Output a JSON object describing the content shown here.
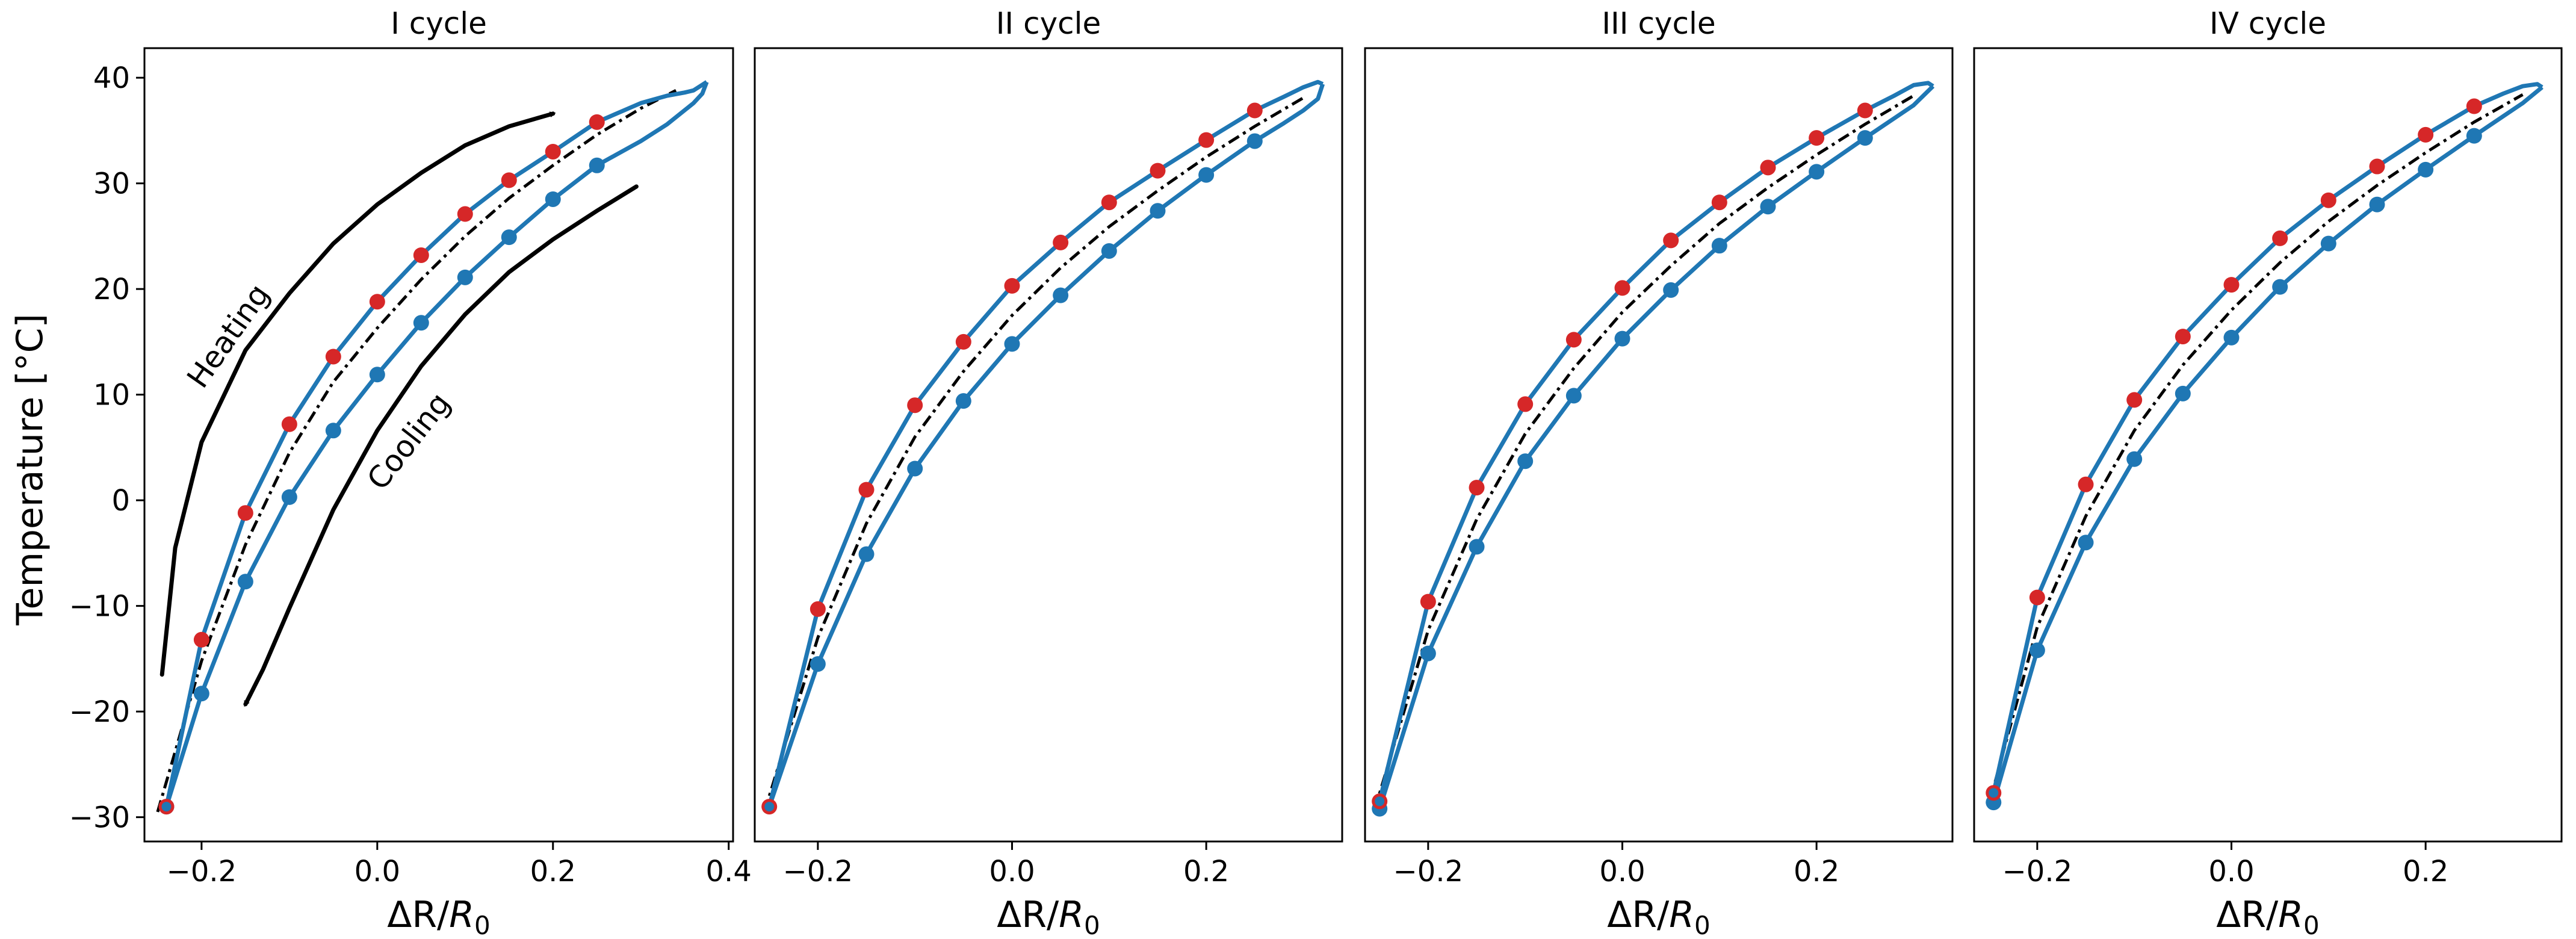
{
  "chart_data": [
    {
      "type": "line",
      "title": "I cycle",
      "xlabel_main": "ΔR/",
      "xlabel_italic": "R",
      "xlabel_sub": "0",
      "ylabel": "Temperature [°C]",
      "xlim": [
        -0.265,
        0.405
      ],
      "ylim": [
        -32.3,
        42.8
      ],
      "x_ticks": [
        -0.2,
        0.0,
        0.2,
        0.4
      ],
      "x_tick_labels": [
        "−0.2",
        "0.0",
        "0.2",
        "0.4"
      ],
      "y_ticks": [
        -30,
        -20,
        -10,
        0,
        10,
        20,
        30,
        40
      ],
      "y_tick_labels": [
        "−30",
        "−20",
        "−10",
        "0",
        "10",
        "20",
        "30",
        "40"
      ],
      "heating": {
        "x": [
          -0.24,
          -0.2,
          -0.15,
          -0.1,
          -0.05,
          0.0,
          0.05,
          0.1,
          0.15,
          0.2,
          0.25,
          0.3,
          0.33,
          0.35,
          0.36,
          0.375
        ],
        "y": [
          -29,
          -13.2,
          -1.2,
          7.2,
          13.6,
          18.8,
          23.2,
          27.1,
          30.3,
          33.0,
          35.8,
          37.6,
          38.3,
          38.6,
          38.8,
          39.6
        ]
      },
      "cooling": {
        "x": [
          0.375,
          0.37,
          0.36,
          0.33,
          0.3,
          0.25,
          0.2,
          0.15,
          0.1,
          0.05,
          0.0,
          -0.05,
          -0.1,
          -0.15,
          -0.2,
          -0.24
        ],
        "y": [
          39.6,
          38.5,
          37.6,
          35.6,
          34.0,
          31.7,
          28.5,
          24.9,
          21.1,
          16.8,
          11.9,
          6.6,
          0.3,
          -7.7,
          -18.3,
          -29
        ]
      },
      "fit": {
        "x": [
          -0.25,
          -0.2,
          -0.15,
          -0.1,
          -0.05,
          0.0,
          0.05,
          0.1,
          0.15,
          0.2,
          0.25,
          0.3,
          0.34
        ],
        "y": [
          -29.5,
          -15.2,
          -4.2,
          4.5,
          11.2,
          16.3,
          20.9,
          25.0,
          28.6,
          31.7,
          34.6,
          37.1,
          38.8
        ]
      },
      "heating_markers": {
        "x": [
          -0.2,
          -0.15,
          -0.1,
          -0.05,
          0.0,
          0.05,
          0.1,
          0.15,
          0.2,
          0.25
        ],
        "y": [
          -13.2,
          -1.2,
          7.2,
          13.6,
          18.8,
          23.2,
          27.1,
          30.3,
          33.0,
          35.8
        ]
      },
      "cooling_markers": {
        "x": [
          -0.24,
          -0.2,
          -0.15,
          -0.1,
          -0.05,
          0.0,
          0.05,
          0.1,
          0.15,
          0.2,
          0.25
        ],
        "y": [
          -29,
          -18.3,
          -7.7,
          0.3,
          6.6,
          11.9,
          16.8,
          21.1,
          24.9,
          28.5,
          31.7
        ]
      },
      "extreme_points": {
        "x": [
          -0.24
        ],
        "y": [
          -29
        ]
      },
      "annotations": [
        {
          "text": "Heating",
          "x": -0.16,
          "y": 15.0,
          "rotation": -55
        },
        {
          "text": "Cooling",
          "x": 0.045,
          "y": 5.0,
          "rotation": -52
        }
      ],
      "arrows": [
        {
          "name": "heating-arrow",
          "x": [
            -0.245,
            -0.23,
            -0.2,
            -0.15,
            -0.1,
            -0.05,
            0.0,
            0.05,
            0.1,
            0.15,
            0.2
          ],
          "y": [
            -16.5,
            -4.5,
            5.5,
            14.2,
            19.6,
            24.3,
            28.0,
            31.0,
            33.6,
            35.4,
            36.6
          ]
        },
        {
          "name": "cooling-arrow",
          "x": [
            0.295,
            0.25,
            0.2,
            0.15,
            0.1,
            0.05,
            0.0,
            -0.05,
            -0.1,
            -0.13,
            -0.15
          ],
          "y": [
            29.7,
            27.4,
            24.7,
            21.6,
            17.6,
            12.7,
            6.6,
            -0.9,
            -10.2,
            -16.0,
            -19.3
          ]
        }
      ]
    },
    {
      "type": "line",
      "title": "II cycle",
      "xlabel_main": "ΔR/",
      "xlabel_italic": "R",
      "xlabel_sub": "0",
      "xlim": [
        -0.265,
        0.34
      ],
      "ylim": [
        -32.3,
        42.8
      ],
      "x_ticks": [
        -0.2,
        0.0,
        0.2
      ],
      "x_tick_labels": [
        "−0.2",
        "0.0",
        "0.2"
      ],
      "y_ticks": [],
      "y_tick_labels": [],
      "heating": {
        "x": [
          -0.25,
          -0.2,
          -0.15,
          -0.1,
          -0.05,
          0.0,
          0.05,
          0.1,
          0.15,
          0.2,
          0.25,
          0.28,
          0.3,
          0.315,
          0.32
        ],
        "y": [
          -29,
          -10.3,
          1.0,
          9.0,
          15.0,
          20.3,
          24.4,
          28.2,
          31.2,
          34.1,
          36.9,
          38.2,
          39.1,
          39.6,
          39.4
        ]
      },
      "cooling": {
        "x": [
          0.32,
          0.315,
          0.3,
          0.28,
          0.25,
          0.2,
          0.15,
          0.1,
          0.05,
          0.0,
          -0.05,
          -0.1,
          -0.15,
          -0.2,
          -0.25
        ],
        "y": [
          39.4,
          38.0,
          36.9,
          35.7,
          34.0,
          30.8,
          27.4,
          23.6,
          19.4,
          14.8,
          9.4,
          3.0,
          -5.1,
          -15.5,
          -29
        ]
      },
      "fit": {
        "x": [
          -0.255,
          -0.2,
          -0.15,
          -0.1,
          -0.05,
          0.0,
          0.05,
          0.1,
          0.15,
          0.2,
          0.25,
          0.3
        ],
        "y": [
          -29.5,
          -13.0,
          -2.2,
          6.0,
          12.2,
          17.5,
          22.0,
          25.9,
          29.3,
          32.5,
          35.4,
          38.1
        ]
      },
      "heating_markers": {
        "x": [
          -0.2,
          -0.15,
          -0.1,
          -0.05,
          0.0,
          0.05,
          0.1,
          0.15,
          0.2,
          0.25
        ],
        "y": [
          -10.3,
          1.0,
          9.0,
          15.0,
          20.3,
          24.4,
          28.2,
          31.2,
          34.1,
          36.9
        ]
      },
      "cooling_markers": {
        "x": [
          -0.2,
          -0.15,
          -0.1,
          -0.05,
          0.0,
          0.05,
          0.1,
          0.15,
          0.2,
          0.25
        ],
        "y": [
          -15.5,
          -5.1,
          3.0,
          9.4,
          14.8,
          19.4,
          23.6,
          27.4,
          30.8,
          34.0
        ]
      },
      "extreme_points": {
        "x": [
          -0.25
        ],
        "y": [
          -29
        ]
      },
      "annotations": [],
      "arrows": []
    },
    {
      "type": "line",
      "title": "III cycle",
      "xlabel_main": "ΔR/",
      "xlabel_italic": "R",
      "xlabel_sub": "0",
      "xlim": [
        -0.265,
        0.34
      ],
      "ylim": [
        -32.3,
        42.8
      ],
      "x_ticks": [
        -0.2,
        0.0,
        0.2
      ],
      "x_tick_labels": [
        "−0.2",
        "0.0",
        "0.2"
      ],
      "y_ticks": [],
      "y_tick_labels": [],
      "heating": {
        "x": [
          -0.25,
          -0.2,
          -0.15,
          -0.1,
          -0.05,
          0.0,
          0.05,
          0.1,
          0.15,
          0.2,
          0.25,
          0.28,
          0.3,
          0.315,
          0.32
        ],
        "y": [
          -28.5,
          -9.6,
          1.2,
          9.1,
          15.2,
          20.1,
          24.6,
          28.2,
          31.5,
          34.3,
          36.9,
          38.3,
          39.3,
          39.5,
          39.2
        ]
      },
      "cooling": {
        "x": [
          0.32,
          0.3,
          0.25,
          0.2,
          0.15,
          0.1,
          0.05,
          0.0,
          -0.05,
          -0.1,
          -0.15,
          -0.2,
          -0.25
        ],
        "y": [
          39.2,
          37.4,
          34.3,
          31.1,
          27.8,
          24.1,
          19.9,
          15.3,
          9.9,
          3.7,
          -4.4,
          -14.5,
          -29.2
        ]
      },
      "fit": {
        "x": [
          -0.255,
          -0.2,
          -0.15,
          -0.1,
          -0.05,
          0.0,
          0.05,
          0.1,
          0.15,
          0.2,
          0.25,
          0.3
        ],
        "y": [
          -29.3,
          -12.3,
          -1.8,
          6.3,
          12.5,
          17.8,
          22.2,
          26.2,
          29.6,
          32.7,
          35.6,
          38.3
        ]
      },
      "heating_markers": {
        "x": [
          -0.2,
          -0.15,
          -0.1,
          -0.05,
          0.0,
          0.05,
          0.1,
          0.15,
          0.2,
          0.25
        ],
        "y": [
          -9.6,
          1.2,
          9.1,
          15.2,
          20.1,
          24.6,
          28.2,
          31.5,
          34.3,
          36.9
        ]
      },
      "cooling_markers": {
        "x": [
          -0.25,
          -0.2,
          -0.15,
          -0.1,
          -0.05,
          0.0,
          0.05,
          0.1,
          0.15,
          0.2,
          0.25
        ],
        "y": [
          -29.2,
          -14.5,
          -4.4,
          3.7,
          9.9,
          15.3,
          19.9,
          24.1,
          27.8,
          31.1,
          34.3
        ]
      },
      "extreme_points": {
        "x": [
          -0.25
        ],
        "y": [
          -28.5
        ]
      },
      "annotations": [],
      "arrows": []
    },
    {
      "type": "line",
      "title": "IV cycle",
      "xlabel_main": "ΔR/",
      "xlabel_italic": "R",
      "xlabel_sub": "0",
      "xlim": [
        -0.265,
        0.34
      ],
      "ylim": [
        -32.3,
        42.8
      ],
      "x_ticks": [
        -0.2,
        0.0,
        0.2
      ],
      "x_tick_labels": [
        "−0.2",
        "0.0",
        "0.2"
      ],
      "y_ticks": [],
      "y_tick_labels": [],
      "heating": {
        "x": [
          -0.245,
          -0.2,
          -0.15,
          -0.1,
          -0.05,
          0.0,
          0.05,
          0.1,
          0.15,
          0.2,
          0.25,
          0.28,
          0.3,
          0.315,
          0.32
        ],
        "y": [
          -27.7,
          -9.2,
          1.5,
          9.5,
          15.5,
          20.4,
          24.8,
          28.4,
          31.6,
          34.6,
          37.3,
          38.5,
          39.2,
          39.4,
          39.1
        ]
      },
      "cooling": {
        "x": [
          0.32,
          0.3,
          0.25,
          0.2,
          0.15,
          0.1,
          0.05,
          0.0,
          -0.05,
          -0.1,
          -0.15,
          -0.2,
          -0.245
        ],
        "y": [
          39.1,
          37.6,
          34.5,
          31.3,
          28.0,
          24.3,
          20.2,
          15.4,
          10.1,
          3.9,
          -4.0,
          -14.2,
          -28.6
        ]
      },
      "fit": {
        "x": [
          -0.25,
          -0.2,
          -0.15,
          -0.1,
          -0.05,
          0.0,
          0.05,
          0.1,
          0.15,
          0.2,
          0.25,
          0.3
        ],
        "y": [
          -28.9,
          -12.0,
          -1.5,
          6.6,
          12.8,
          18.0,
          22.5,
          26.4,
          29.8,
          32.9,
          35.8,
          38.4
        ]
      },
      "heating_markers": {
        "x": [
          -0.2,
          -0.15,
          -0.1,
          -0.05,
          0.0,
          0.05,
          0.1,
          0.15,
          0.2,
          0.25
        ],
        "y": [
          -9.2,
          1.5,
          9.5,
          15.5,
          20.4,
          24.8,
          28.4,
          31.6,
          34.6,
          37.3
        ]
      },
      "cooling_markers": {
        "x": [
          -0.245,
          -0.2,
          -0.15,
          -0.1,
          -0.05,
          0.0,
          0.05,
          0.1,
          0.15,
          0.2,
          0.25
        ],
        "y": [
          -28.6,
          -14.2,
          -4.0,
          3.9,
          10.1,
          15.4,
          20.2,
          24.3,
          28.0,
          31.3,
          34.5
        ]
      },
      "extreme_points": {
        "x": [
          -0.245
        ],
        "y": [
          -27.7
        ]
      },
      "annotations": [],
      "arrows": []
    }
  ],
  "colors": {
    "curve": "#1f77b4",
    "heating_marker": "#d62728",
    "fit": "#000000",
    "arrow": "#000000",
    "frame": "#000000"
  }
}
